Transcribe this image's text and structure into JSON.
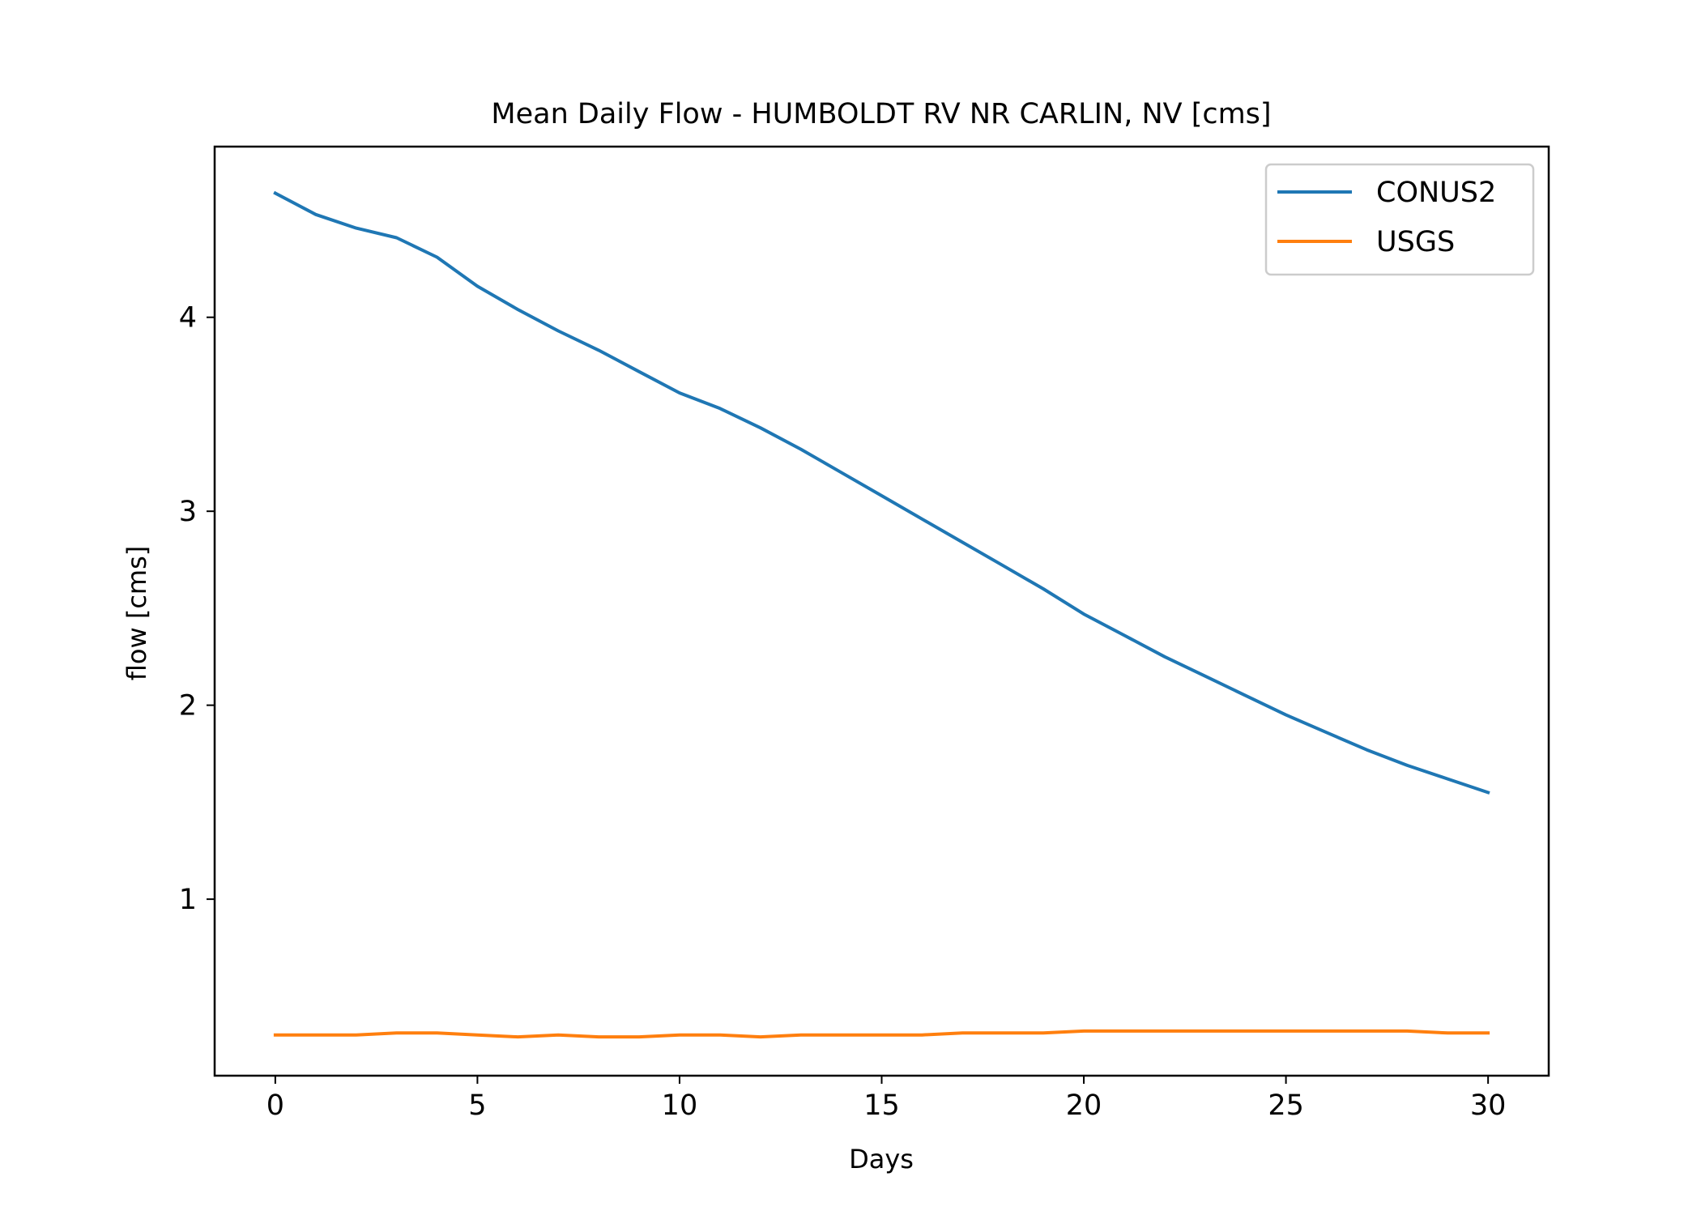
{
  "chart_data": {
    "type": "line",
    "title": "Mean Daily Flow - HUMBOLDT RV NR CARLIN, NV [cms]",
    "xlabel": "Days",
    "ylabel": "flow [cms]",
    "xlim": [
      -1.5,
      31.5
    ],
    "ylim": [
      0.09,
      4.88
    ],
    "xticks": [
      0,
      5,
      10,
      15,
      20,
      25,
      30
    ],
    "yticks": [
      1,
      2,
      3,
      4
    ],
    "grid": false,
    "legend": "top-right",
    "x": [
      0,
      1,
      2,
      3,
      4,
      5,
      6,
      7,
      8,
      9,
      10,
      11,
      12,
      13,
      14,
      15,
      16,
      17,
      18,
      19,
      20,
      21,
      22,
      23,
      24,
      25,
      26,
      27,
      28,
      29,
      30
    ],
    "series": [
      {
        "name": "CONUS2",
        "color": "#1f77b4",
        "values": [
          4.64,
          4.53,
          4.46,
          4.41,
          4.31,
          4.16,
          4.04,
          3.93,
          3.83,
          3.72,
          3.61,
          3.53,
          3.43,
          3.32,
          3.2,
          3.08,
          2.96,
          2.84,
          2.72,
          2.6,
          2.47,
          2.36,
          2.25,
          2.15,
          2.05,
          1.95,
          1.86,
          1.77,
          1.69,
          1.62,
          1.55
        ]
      },
      {
        "name": "USGS",
        "color": "#ff7f0e",
        "values": [
          0.3,
          0.3,
          0.3,
          0.31,
          0.31,
          0.3,
          0.29,
          0.3,
          0.29,
          0.29,
          0.3,
          0.3,
          0.29,
          0.3,
          0.3,
          0.3,
          0.3,
          0.31,
          0.31,
          0.31,
          0.32,
          0.32,
          0.32,
          0.32,
          0.32,
          0.32,
          0.32,
          0.32,
          0.32,
          0.31,
          0.31
        ]
      }
    ]
  }
}
